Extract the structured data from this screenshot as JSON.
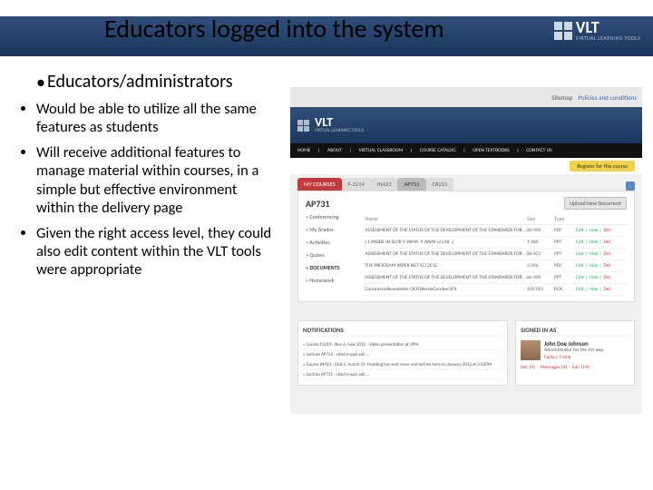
{
  "title": "Educators logged into the system",
  "logo": {
    "brand": "VLT",
    "tagline": "VIRTUAL LEARNING TOOLS"
  },
  "subheading": "Educators/administrators",
  "bullets": [
    "Would be able to utilize all the same features as students",
    "Will receive additional features to manage material within courses, in a simple but effective environment within the delivery page",
    "Given the right access level, they could also edit content within the VLT tools were appropriate"
  ],
  "mock": {
    "top_links": [
      "Sitemap",
      "Policies and conditions"
    ],
    "logo": {
      "brand": "VLT",
      "tagline": "VIRTUAL LEARNING TOOLS"
    },
    "nav": [
      "HOME",
      "ABOUT",
      "VIRTUAL CLASSROOM",
      "COURSE CATALOG",
      "OPEN TEXTBOOKS",
      "CONTACT US"
    ],
    "cta": "Register for this course",
    "tabs": [
      "MY COURSES",
      "F-2214",
      "IN423",
      "AP731",
      "CR221"
    ],
    "active_tab": 3,
    "course_title": "AP731",
    "upload_btn": "Upload New Document",
    "sidebar": [
      "» Conferencing",
      "» My Grades",
      "» Activities",
      "» Quizes",
      "» DOCUMENTS",
      "» Homework"
    ],
    "table": {
      "headers": [
        "Name",
        "Size",
        "Type",
        ""
      ],
      "rows": [
        {
          "name": "ASSESSMENT OF THE STATUS OF THE DEVELOPMENT OF THE STANDARDS FOR ...",
          "size": "80.909",
          "type": "PDF",
          "edit": "Edit |",
          "hide": "Hide |",
          "del": "Del"
        },
        {
          "name": "I 1 INSIDE IN ID/IR V WMA. 4 AWAY ei LAll ..i",
          "size": "1.960",
          "type": "PPT",
          "edit": "Edit |",
          "hide": "Hide |",
          "del": "Del"
        },
        {
          "name": "ASSESSMENT OF THE STATUS OF THE DEVELOPMENT OF THE STANDARDS FOR ...",
          "size": "86.421",
          "type": "PPT",
          "edit": "Edit |",
          "hide": "Hide |",
          "del": "Del"
        },
        {
          "name": "THE PROGRAM PAPER NET SCI 2012",
          "size": "3.346",
          "type": "PDF",
          "edit": "Edit |",
          "hide": "Hide |",
          "del": "Del"
        },
        {
          "name": "ASSESSMENT OF THE STATUS OF THE DEVELOPMENT OF THE STANDARDS FOR ...",
          "size": "86.400",
          "type": "PPT",
          "edit": "Edit |",
          "hide": "Hide |",
          "del": "Del"
        },
        {
          "name": "CommissioNewsletter  OCtOBerdeCember201",
          "size": "100.005",
          "type": "DOC",
          "edit": "Edit |",
          "hide": "Hide |",
          "del": "Del"
        }
      ]
    },
    "notifications": {
      "heading": "NOTIFICATIONS",
      "items": [
        "» Course F2214 - Nov 6, new 2012 - Video presentation at 3PM",
        "» Lecture AP731 - cited e-quiz will ...",
        "» Course IN423 - Unit 1, march 21 -Handing has sent more and will be here on January 2012 at 3:15PM",
        "» Lecture AP731 - cited e-quiz will ..."
      ]
    },
    "user": {
      "heading": "SIGNED IN AS",
      "name": "John Doe Johnson",
      "dept": "Administrator for the Art dep",
      "role": "Carla J. Frank",
      "links": [
        "Set. (4)",
        "Messages (3)",
        "Ext. (14)"
      ]
    }
  }
}
